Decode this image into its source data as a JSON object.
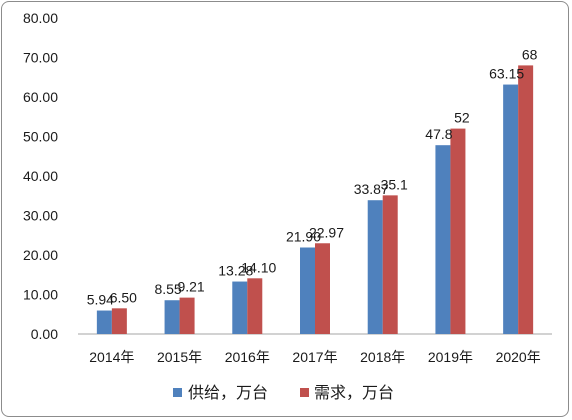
{
  "chart_data": {
    "type": "bar",
    "categories": [
      "2014年",
      "2015年",
      "2016年",
      "2017年",
      "2018年",
      "2019年",
      "2020年"
    ],
    "series": [
      {
        "name": "供给，万台",
        "color": "#4f81bd",
        "values": [
          5.94,
          8.55,
          13.28,
          21.9,
          33.87,
          47.8,
          63.15
        ],
        "labels": [
          "5.94",
          "8.55",
          "13.28",
          "21.90",
          "33.87",
          "47.8",
          "63.15"
        ]
      },
      {
        "name": "需求，万台",
        "color": "#c0504d",
        "values": [
          6.5,
          9.21,
          14.1,
          22.97,
          35.1,
          52,
          68
        ],
        "labels": [
          "6.50",
          "9.21",
          "14.10",
          "22.97",
          "35.1",
          "52",
          "68"
        ]
      }
    ],
    "ylim": [
      0,
      80
    ],
    "yticks": [
      "0.00",
      "10.00",
      "20.00",
      "30.00",
      "40.00",
      "50.00",
      "60.00",
      "70.00",
      "80.00"
    ],
    "grid": false,
    "legend": "bottom"
  }
}
